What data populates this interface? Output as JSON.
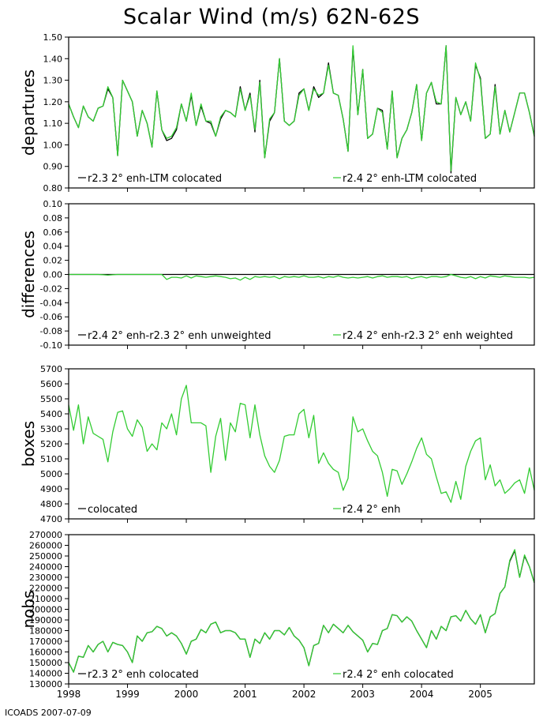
{
  "figure": {
    "title": "Scalar Wind (m/s) 62N-62S",
    "footer": "ICOADS 2007-07-09",
    "x_tick_labels": [
      "1998",
      "1999",
      "2000",
      "2001",
      "2002",
      "2003",
      "2004",
      "2005"
    ],
    "colors": {
      "series_a": "#000000",
      "series_b": "#33cc33",
      "frame": "#000000"
    }
  },
  "chart_data": [
    {
      "type": "line",
      "ylabel": "departures",
      "ylim": [
        0.8,
        1.5
      ],
      "yticks": [
        0.8,
        0.9,
        1.0,
        1.1,
        1.2,
        1.3,
        1.4,
        1.5
      ],
      "ytick_labels": [
        "0.80",
        "0.90",
        "1.00",
        "1.10",
        "1.20",
        "1.30",
        "1.40",
        "1.50"
      ],
      "x_start": 1998.0,
      "x_end": 2005.917,
      "x_step_months": 1,
      "legend": [
        {
          "name": "r2.3 2° enh-LTM colocated",
          "color": "#000000"
        },
        {
          "name": "r2.4 2° enh-LTM colocated",
          "color": "#33cc33"
        }
      ],
      "series": [
        {
          "name": "r2.3 2° enh-LTM colocated",
          "values": [
            1.19,
            1.13,
            1.08,
            1.18,
            1.13,
            1.11,
            1.17,
            1.18,
            1.26,
            1.22,
            0.95,
            1.3,
            1.25,
            1.2,
            1.04,
            1.16,
            1.1,
            0.99,
            1.25,
            1.07,
            1.02,
            1.03,
            1.07,
            1.19,
            1.11,
            1.23,
            1.09,
            1.18,
            1.11,
            1.1,
            1.04,
            1.12,
            1.16,
            1.15,
            1.13,
            1.27,
            1.16,
            1.24,
            1.06,
            1.3,
            0.94,
            1.11,
            1.15,
            1.4,
            1.11,
            1.09,
            1.11,
            1.24,
            1.26,
            1.16,
            1.27,
            1.22,
            1.24,
            1.38,
            1.24,
            1.23,
            1.12,
            0.97,
            1.45,
            1.14,
            1.35,
            1.03,
            1.05,
            1.17,
            1.16,
            0.98,
            1.25,
            0.94,
            1.03,
            1.07,
            1.15,
            1.28,
            1.02,
            1.24,
            1.29,
            1.19,
            1.19,
            1.46,
            0.87,
            1.22,
            1.14,
            1.2,
            1.11,
            1.37,
            1.31,
            1.03,
            1.05,
            1.28,
            1.05,
            1.16,
            1.06,
            1.15,
            1.24,
            1.24,
            1.15,
            1.04
          ]
        },
        {
          "name": "r2.4 2° enh-LTM colocated",
          "values": [
            1.19,
            1.13,
            1.08,
            1.18,
            1.13,
            1.11,
            1.17,
            1.18,
            1.27,
            1.22,
            0.95,
            1.3,
            1.25,
            1.2,
            1.04,
            1.16,
            1.1,
            0.99,
            1.25,
            1.07,
            1.03,
            1.04,
            1.08,
            1.19,
            1.11,
            1.24,
            1.09,
            1.19,
            1.11,
            1.11,
            1.04,
            1.13,
            1.16,
            1.15,
            1.13,
            1.26,
            1.16,
            1.23,
            1.07,
            1.29,
            0.94,
            1.12,
            1.15,
            1.4,
            1.11,
            1.09,
            1.11,
            1.23,
            1.26,
            1.16,
            1.26,
            1.23,
            1.24,
            1.37,
            1.24,
            1.23,
            1.12,
            0.97,
            1.46,
            1.14,
            1.35,
            1.03,
            1.05,
            1.17,
            1.15,
            0.98,
            1.25,
            0.94,
            1.03,
            1.07,
            1.15,
            1.28,
            1.02,
            1.24,
            1.29,
            1.2,
            1.19,
            1.46,
            0.88,
            1.22,
            1.14,
            1.2,
            1.11,
            1.38,
            1.3,
            1.03,
            1.05,
            1.27,
            1.05,
            1.16,
            1.06,
            1.15,
            1.24,
            1.24,
            1.15,
            1.04
          ]
        }
      ]
    },
    {
      "type": "line",
      "ylabel": "differences",
      "ylim": [
        -0.1,
        0.1
      ],
      "yticks": [
        -0.1,
        -0.08,
        -0.06,
        -0.04,
        -0.02,
        0.0,
        0.02,
        0.04,
        0.06,
        0.08,
        0.1
      ],
      "ytick_labels": [
        "-0.10",
        "-0.08",
        "-0.06",
        "-0.04",
        "-0.02",
        "0.00",
        "0.02",
        "0.04",
        "0.06",
        "0.08",
        "0.10"
      ],
      "x_start": 1998.0,
      "x_end": 2005.917,
      "x_step_months": 1,
      "legend": [
        {
          "name": "r2.4 2° enh-r2.3 2° enh unweighted",
          "color": "#000000"
        },
        {
          "name": "r2.4 2° enh-r2.3 2° enh weighted",
          "color": "#33cc33"
        }
      ],
      "series": [
        {
          "name": "r2.4 2° enh-r2.3 2° enh unweighted",
          "values": [
            0,
            0,
            0,
            0,
            0,
            0,
            0,
            0,
            0,
            0,
            0,
            0,
            0,
            0,
            0,
            0,
            0,
            0,
            0,
            0,
            0,
            0,
            0,
            0,
            0,
            0,
            0,
            0,
            0,
            0,
            0,
            0,
            0,
            0,
            0,
            0,
            0,
            0,
            0,
            0,
            0,
            0,
            0,
            0,
            0,
            0,
            0,
            0,
            0,
            0,
            0,
            0,
            0,
            0,
            0,
            0,
            0,
            0,
            0,
            0,
            0,
            0,
            0,
            0,
            0,
            0,
            0,
            0,
            0,
            0,
            0,
            0,
            0,
            0,
            0,
            0,
            0,
            0,
            0,
            0,
            0,
            0,
            0,
            0,
            0,
            0,
            0,
            0,
            0,
            0,
            0,
            0,
            0,
            0,
            0,
            0
          ]
        },
        {
          "name": "r2.4 2° enh-r2.3 2° enh weighted",
          "values": [
            0,
            0,
            0,
            0,
            0,
            0,
            0,
            -0.0005,
            -0.001,
            -0.0005,
            0,
            0,
            0,
            0,
            0,
            0,
            0,
            0,
            0,
            0,
            -0.007,
            -0.004,
            -0.004,
            -0.005,
            -0.002,
            -0.005,
            -0.002,
            -0.003,
            -0.004,
            -0.003,
            -0.002,
            -0.003,
            -0.004,
            -0.006,
            -0.005,
            -0.008,
            -0.004,
            -0.007,
            -0.003,
            -0.004,
            -0.003,
            -0.004,
            -0.003,
            -0.006,
            -0.003,
            -0.004,
            -0.003,
            -0.004,
            -0.002,
            -0.004,
            -0.004,
            -0.003,
            -0.005,
            -0.003,
            -0.004,
            -0.002,
            -0.004,
            -0.005,
            -0.004,
            -0.005,
            -0.004,
            -0.003,
            -0.005,
            -0.003,
            -0.002,
            -0.004,
            -0.003,
            -0.003,
            -0.004,
            -0.003,
            -0.006,
            -0.004,
            -0.003,
            -0.005,
            -0.003,
            -0.003,
            -0.004,
            -0.003,
            0.0,
            -0.002,
            -0.004,
            -0.005,
            -0.003,
            -0.006,
            -0.003,
            -0.005,
            -0.002,
            -0.003,
            -0.004,
            -0.002,
            -0.003,
            -0.004,
            -0.004,
            -0.004,
            -0.005,
            -0.004
          ]
        }
      ]
    },
    {
      "type": "line",
      "ylabel": "boxes",
      "ylim": [
        4700,
        5700
      ],
      "yticks": [
        4700,
        4800,
        4900,
        5000,
        5100,
        5200,
        5300,
        5400,
        5500,
        5600,
        5700
      ],
      "ytick_labels": [
        "4700",
        "4800",
        "4900",
        "5000",
        "5100",
        "5200",
        "5300",
        "5400",
        "5500",
        "5600",
        "5700"
      ],
      "x_start": 1998.0,
      "x_end": 2005.917,
      "x_step_months": 1,
      "legend": [
        {
          "name": "colocated",
          "color": "#000000"
        },
        {
          "name": "r2.4 2° enh",
          "color": "#33cc33"
        }
      ],
      "series": [
        {
          "name": "r2.4 2° enh",
          "values": [
            5460,
            5290,
            5460,
            5200,
            5380,
            5270,
            5250,
            5230,
            5080,
            5280,
            5410,
            5420,
            5300,
            5250,
            5360,
            5310,
            5150,
            5200,
            5160,
            5340,
            5300,
            5400,
            5260,
            5500,
            5590,
            5340,
            5340,
            5340,
            5320,
            5010,
            5250,
            5370,
            5090,
            5340,
            5280,
            5470,
            5460,
            5240,
            5460,
            5260,
            5120,
            5050,
            5010,
            5090,
            5250,
            5260,
            5260,
            5400,
            5430,
            5240,
            5390,
            5070,
            5140,
            5070,
            5030,
            5010,
            4890,
            4970,
            5380,
            5280,
            5300,
            5220,
            5150,
            5120,
            5010,
            4850,
            5030,
            5020,
            4930,
            5000,
            5080,
            5170,
            5240,
            5130,
            5100,
            4980,
            4870,
            4880,
            4810,
            4950,
            4830,
            5050,
            5150,
            5220,
            5240,
            4960,
            5060,
            4920,
            4960,
            4870,
            4900,
            4940,
            4960,
            4870,
            5040,
            4890
          ]
        }
      ]
    },
    {
      "type": "line",
      "ylabel": "nobs",
      "ylim": [
        130000,
        270000
      ],
      "yticks": [
        130000,
        140000,
        150000,
        160000,
        170000,
        180000,
        190000,
        200000,
        210000,
        220000,
        230000,
        240000,
        250000,
        260000,
        270000
      ],
      "ytick_labels": [
        "130000",
        "140000",
        "150000",
        "160000",
        "170000",
        "180000",
        "190000",
        "200000",
        "210000",
        "220000",
        "230000",
        "240000",
        "250000",
        "260000",
        "270000"
      ],
      "x_start": 1998.0,
      "x_end": 2005.917,
      "x_step_months": 1,
      "legend": [
        {
          "name": "r2.3 2° enh colocated",
          "color": "#000000"
        },
        {
          "name": "r2.4 2° enh colocated",
          "color": "#33cc33"
        }
      ],
      "series": [
        {
          "name": "r2.3 2° enh colocated",
          "values": [
            150000,
            141000,
            156000,
            155000,
            166000,
            160000,
            167000,
            170000,
            160000,
            169000,
            167000,
            166000,
            160000,
            150000,
            175000,
            170000,
            178000,
            179000,
            184000,
            182000,
            175000,
            178000,
            175000,
            168000,
            158000,
            170000,
            172000,
            181000,
            178000,
            186000,
            188000,
            178000,
            180000,
            180000,
            178000,
            172000,
            172000,
            155000,
            172000,
            168000,
            178000,
            172000,
            180000,
            180000,
            176000,
            183000,
            175000,
            171000,
            164000,
            147000,
            166000,
            168000,
            185000,
            178000,
            186000,
            182000,
            178000,
            185000,
            179000,
            175000,
            171000,
            160000,
            168000,
            167000,
            180000,
            182000,
            195000,
            194000,
            188000,
            193000,
            189000,
            180000,
            172000,
            164000,
            180000,
            172000,
            184000,
            180000,
            193000,
            194000,
            189000,
            199000,
            191000,
            186000,
            195000,
            178000,
            193000,
            196000,
            215000,
            221000,
            245000,
            255000,
            230000,
            250000,
            240000,
            225000
          ]
        },
        {
          "name": "r2.4 2° enh colocated",
          "values": [
            150000,
            141000,
            156000,
            155000,
            166000,
            160000,
            167000,
            170000,
            160000,
            169000,
            167000,
            166000,
            160000,
            150000,
            175000,
            170000,
            178000,
            179000,
            184000,
            182000,
            175000,
            178000,
            175000,
            168000,
            158000,
            170000,
            172000,
            181000,
            178000,
            186000,
            188000,
            178000,
            180000,
            180000,
            178000,
            172000,
            172000,
            155000,
            172000,
            168000,
            178000,
            172000,
            180000,
            180000,
            176000,
            183000,
            175000,
            171000,
            164000,
            147000,
            166000,
            168000,
            185000,
            178000,
            186000,
            182000,
            178000,
            185000,
            179000,
            175000,
            171000,
            160000,
            168000,
            167000,
            180000,
            182000,
            195000,
            194000,
            188000,
            193000,
            189000,
            180000,
            172000,
            164000,
            180000,
            172000,
            184000,
            180000,
            193000,
            194000,
            189000,
            199000,
            191000,
            186000,
            195000,
            178000,
            193000,
            196000,
            215000,
            221000,
            246000,
            256000,
            230000,
            251000,
            240000,
            225000
          ]
        }
      ]
    }
  ]
}
